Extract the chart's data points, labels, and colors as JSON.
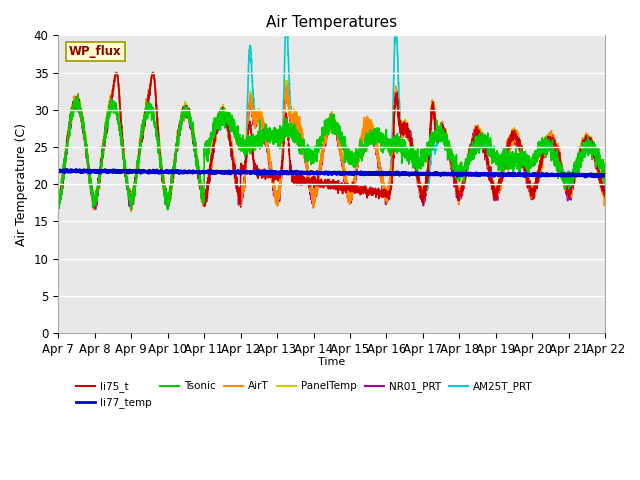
{
  "title": "Air Temperatures",
  "xlabel": "Time",
  "ylabel": "Air Temperature (C)",
  "ylim": [
    0,
    40
  ],
  "background_color": "#e8e8e8",
  "figure_background": "#ffffff",
  "wp_flux_label": "WP_flux",
  "wp_flux_bg": "#ffffcc",
  "wp_flux_border": "#999900",
  "wp_flux_text_color": "#8b0000",
  "series": {
    "li75_t": {
      "color": "#cc0000",
      "lw": 1.2
    },
    "li77_temp": {
      "color": "#0000cc",
      "lw": 2.0
    },
    "Tsonic": {
      "color": "#00cc00",
      "lw": 1.2
    },
    "AirT": {
      "color": "#ff8800",
      "lw": 1.2
    },
    "PanelTemp": {
      "color": "#cccc00",
      "lw": 1.2
    },
    "NR01_PRT": {
      "color": "#aa00aa",
      "lw": 1.2
    },
    "AM25T_PRT": {
      "color": "#00cccc",
      "lw": 1.2
    }
  },
  "x_tick_labels": [
    "Apr 7",
    "Apr 8",
    "Apr 9",
    "Apr 10",
    "Apr 11",
    "Apr 12",
    "Apr 13",
    "Apr 14",
    "Apr 15",
    "Apr 16",
    "Apr 17",
    "Apr 18",
    "Apr 19",
    "Apr 20",
    "Apr 21",
    "Apr 22"
  ],
  "grid_color": "#ffffff",
  "grid_lw": 1.0,
  "figsize": [
    6.4,
    4.8
  ],
  "dpi": 100
}
